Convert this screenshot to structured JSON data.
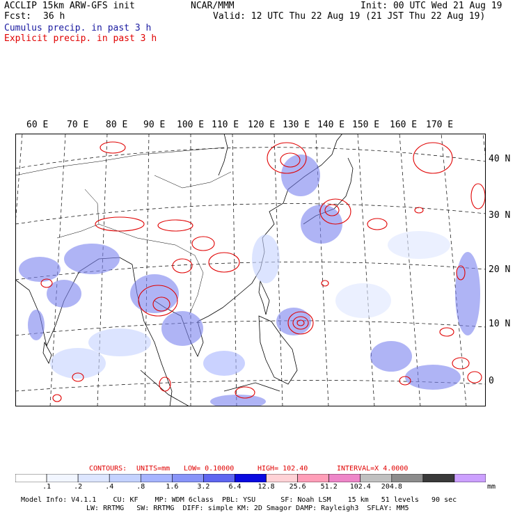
{
  "header": {
    "model_line": "ACCLIP 15km ARW-GFS init",
    "fcst_label": "Fcst:",
    "fcst_value": "36 h",
    "org": "NCAR/MMM",
    "init": "Init: 00 UTC Wed 21 Aug 19",
    "valid": "Valid: 12 UTC Thu 22 Aug 19 (21 JST Thu 22 Aug 19)",
    "cumulus_label": "Cumulus precip. in past 3 h",
    "explicit_label": "Explicit precip. in past 3 h"
  },
  "colors": {
    "cumulus": "#1a1aa0",
    "explicit": "#e00000",
    "frame": "#000000",
    "grid": "#000000"
  },
  "map": {
    "lon_labels": [
      "60 E",
      "70 E",
      "80 E",
      "90 E",
      "100 E",
      "110 E",
      "120 E",
      "130 E",
      "140 E",
      "150 E",
      "160 E",
      "170 E"
    ],
    "lat_labels": [
      "40 N",
      "30 N",
      "20 N",
      "10 N",
      "0"
    ]
  },
  "contours_info": {
    "label": "CONTOURS:",
    "units": "UNITS=mm",
    "low": "LOW= 0.10000",
    "high": "HIGH= 102.40",
    "interval": "INTERVAL=X 4.0000"
  },
  "colorbar": {
    "colors": [
      "#ffffff",
      "#f2f6ff",
      "#dde6ff",
      "#c4d2ff",
      "#a6b4ff",
      "#8894f8",
      "#5f66f0",
      "#0a0ae0",
      "#ffd2d6",
      "#ff9eb8",
      "#ee86c8",
      "#c0c0c0",
      "#8c8c8c",
      "#3a3a3a",
      "#cca0ff"
    ],
    "labels": [
      ".1",
      ".2",
      ".4",
      ".8",
      "1.6",
      "3.2",
      "6.4",
      "12.8",
      "25.6",
      "51.2",
      "102.4",
      "204.8"
    ],
    "unit": "mm"
  },
  "footer": {
    "line1": "Model Info: V4.1.1    CU: KF    MP: WDM 6class  PBL: YSU      SF: Noah LSM    15 km   51 levels   90 sec",
    "line2": "LW: RRTMG   SW: RRTMG  DIFF: simple KM: 2D Smagor DAMP: Rayleigh3  SFLAY: MM5"
  }
}
